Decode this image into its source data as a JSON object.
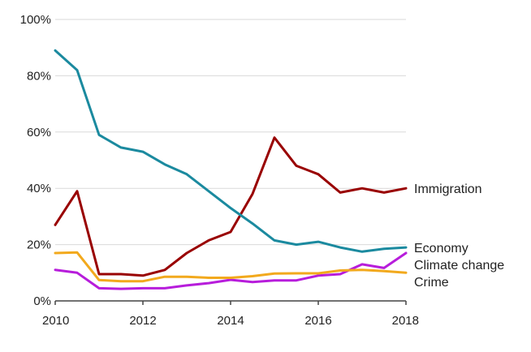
{
  "chart_data": {
    "type": "line",
    "title": "",
    "xlabel": "",
    "ylabel": "",
    "xlim": [
      2010,
      2018
    ],
    "ylim": [
      0,
      100
    ],
    "x_ticks": [
      2010,
      2012,
      2014,
      2016,
      2018
    ],
    "x_tick_labels": [
      "2010",
      "2012",
      "2014",
      "2016",
      "2018"
    ],
    "y_ticks": [
      0,
      20,
      40,
      60,
      80,
      100
    ],
    "y_tick_labels": [
      "0%",
      "20%",
      "40%",
      "60%",
      "80%",
      "100%"
    ],
    "grid": true,
    "legend": "inline labels at right end of each series",
    "x": [
      2010,
      2010.5,
      2011,
      2011.5,
      2012,
      2012.5,
      2013,
      2013.5,
      2014,
      2014.5,
      2015,
      2015.5,
      2016,
      2016.5,
      2017,
      2017.5,
      2018
    ],
    "series": [
      {
        "name": "Immigration",
        "label": "Immigration",
        "color": "#990000",
        "values": [
          27,
          39,
          9.5,
          9.5,
          9,
          11,
          17,
          21.5,
          24.5,
          38,
          58,
          48,
          45,
          38.5,
          40,
          38.5,
          40
        ]
      },
      {
        "name": "Economy",
        "label": "Economy",
        "color": "#1b8a9f",
        "values": [
          89,
          82,
          59,
          54.5,
          53,
          48.5,
          45,
          39,
          33,
          27.5,
          21.5,
          20,
          21,
          19,
          17.5,
          18.5,
          19
        ]
      },
      {
        "name": "Climate change",
        "label": "Climate change",
        "color": "#b71ddb",
        "values": [
          11,
          10,
          4.5,
          4.3,
          4.5,
          4.5,
          5.5,
          6.3,
          7.5,
          6.7,
          7.3,
          7.3,
          9,
          9.5,
          13,
          11.7,
          17
        ]
      },
      {
        "name": "Crime",
        "label": "Crime",
        "color": "#f2a91d",
        "values": [
          17,
          17.2,
          7.4,
          7,
          7,
          8.6,
          8.6,
          8.2,
          8.2,
          8.8,
          9.7,
          9.8,
          9.8,
          10.8,
          11,
          10.6,
          10
        ]
      }
    ]
  }
}
